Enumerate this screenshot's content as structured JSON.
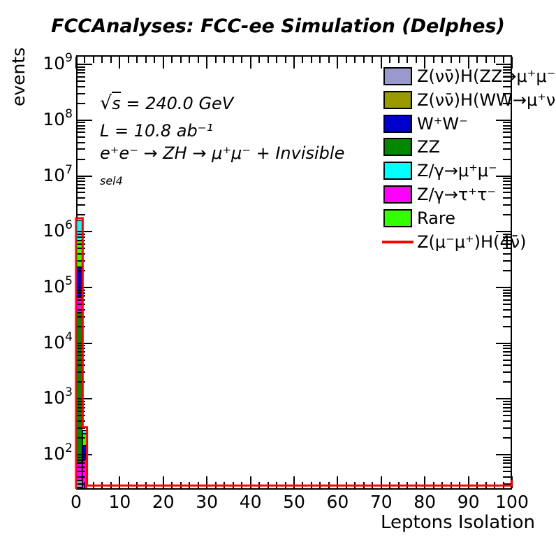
{
  "title": "FCCAnalyses: FCC-ee Simulation (Delphes)",
  "annotations": {
    "sqrt_sign": "√",
    "sqrt_var": "s",
    "sqrt_rest": " = 240.0 GeV",
    "luminosity": "L = 10.8 ab⁻¹",
    "process": "e⁺e⁻ → ZH → μ⁺μ⁻ + Invisible",
    "selection": "sel4"
  },
  "axes": {
    "x": {
      "title": "Leptons Isolation",
      "min": 0,
      "max": 100,
      "major_ticks": [
        0,
        10,
        20,
        30,
        40,
        50,
        60,
        70,
        80,
        90,
        100
      ],
      "minor_step": 2
    },
    "y": {
      "title": "events",
      "scale": "log",
      "tick_base": "10",
      "tick_exponents": [
        2,
        3,
        4,
        5,
        6,
        7,
        8,
        9
      ]
    }
  },
  "legend": {
    "items": [
      {
        "label": "Z(νν̄)H(ZZ→μ⁺μ⁻νν̄)",
        "color": "#9999CC",
        "marker": "box"
      },
      {
        "label": "Z(νν̄)H(WW→μ⁺νμ⁻ν̄)",
        "color": "#999900",
        "marker": "box"
      },
      {
        "label": "W⁺W⁻",
        "color": "#0000CC",
        "marker": "box"
      },
      {
        "label": "ZZ",
        "color": "#008800",
        "marker": "box"
      },
      {
        "label": "Z/γ→μ⁺μ⁻",
        "color": "#00FFFF",
        "marker": "box"
      },
      {
        "label": "Z/γ→τ⁺τ⁻",
        "color": "#FF00FF",
        "marker": "box"
      },
      {
        "label": "Rare",
        "color": "#33FF00",
        "marker": "box"
      },
      {
        "label": "Z(μ⁻μ⁺)H(4ν̄)",
        "color": "#FF0000",
        "marker": "line"
      }
    ]
  },
  "chart_data": {
    "type": "bar",
    "subtype": "stacked-histogram",
    "title": "FCCAnalyses: FCC-ee Simulation (Delphes)",
    "xlabel": "Leptons Isolation",
    "ylabel": "events",
    "xlim": [
      0,
      100
    ],
    "ylim": [
      23.5,
      1400000000
    ],
    "yscale": "log",
    "grid": false,
    "legend_position": "top-right",
    "bins": [
      {
        "x0": 0,
        "x1": 1.5,
        "segments": [
          {
            "series": "Z/γ→μ⁺μ⁻",
            "color": "#00FFFF",
            "v_top": 1590000,
            "v_bottom": 690000
          },
          {
            "series": "Rare",
            "color": "#33FF00",
            "v_top": 690000,
            "v_bottom": 230000
          },
          {
            "series": "W⁺W⁻",
            "color": "#0000CC",
            "v_top": 230000,
            "v_bottom": 67000
          },
          {
            "series": "Z/γ→τ⁺τ⁻",
            "color": "#FF00FF",
            "v_top": 67000,
            "v_bottom": 35000
          },
          {
            "series": "ZZ",
            "color": "#008800",
            "v_top": 35000,
            "v_bottom": 70
          },
          {
            "series": "Z/γ→τ⁺τ⁻",
            "color": "#FF00FF",
            "v_top": 70,
            "v_bottom": 34
          },
          {
            "series": "Z(νν̄)H(ZZ→μ⁺μ⁻νν̄)",
            "color": "#9999CC",
            "v_top": 34,
            "v_bottom": 25.5
          },
          {
            "series": "Z/γ→τ⁺τ⁻",
            "color": "#FF00FF",
            "v_top": 25.5,
            "v_bottom": 23.5
          }
        ]
      },
      {
        "x0": 1.5,
        "x1": 2.5,
        "segments": [
          {
            "series": "Z/γ→μ⁺μ⁻",
            "color": "#00FFFF",
            "v_top": 276,
            "v_bottom": 238
          },
          {
            "series": "Rare",
            "color": "#33FF00",
            "v_top": 238,
            "v_bottom": 146
          },
          {
            "series": "W⁺W⁻",
            "color": "#0000CC",
            "v_top": 146,
            "v_bottom": 82
          },
          {
            "series": "Z/γ→τ⁺τ⁻",
            "color": "#FF00FF",
            "v_top": 82,
            "v_bottom": 23.5
          }
        ]
      }
    ],
    "signal_line": {
      "label": "Z(μ⁻μ⁺)H(4ν̄)",
      "color": "#FF0000",
      "bins": [
        {
          "x0": 0,
          "x1": 1.5,
          "v": 1740000
        },
        {
          "x0": 1.5,
          "x1": 2.5,
          "v": 310
        },
        {
          "x0": 2.5,
          "x1": 100,
          "v": 28
        }
      ]
    }
  }
}
